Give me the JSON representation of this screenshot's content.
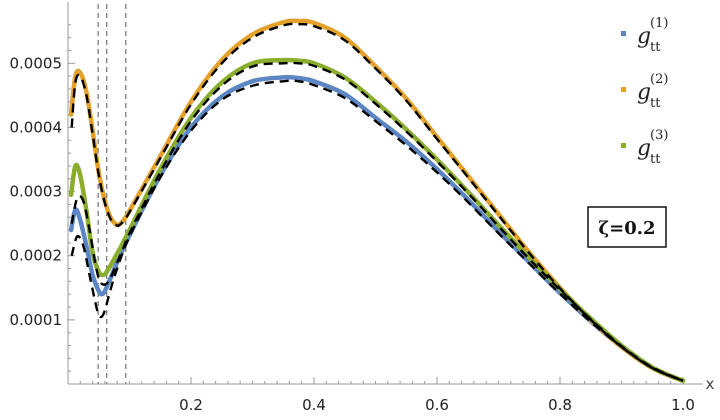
{
  "chart_data": {
    "type": "line",
    "xlabel": "x",
    "ylabel": "",
    "xlim": [
      0.0,
      1.0
    ],
    "ylim": [
      0.0,
      0.00058
    ],
    "x_ticks": [
      0.2,
      0.4,
      0.6,
      0.8,
      1.0
    ],
    "x_tick_labels": [
      "0.2",
      "0.4",
      "0.6",
      "0.8",
      "1.0"
    ],
    "y_ticks": [
      0.0001,
      0.0002,
      0.0003,
      0.0004,
      0.0005
    ],
    "y_tick_labels": [
      "0.0001",
      "0.0002",
      "0.0003",
      "0.0004",
      "0.0005"
    ],
    "vertical_reference_lines": [
      0.049,
      0.063,
      0.094
    ],
    "legend_position": "top-right",
    "annotation": "ζ=0.2",
    "series": [
      {
        "legend_base": "g",
        "legend_sub": "tt",
        "legend_sup": "(1)",
        "color": "#5b86c3",
        "x": [
          0.005,
          0.012,
          0.02,
          0.03,
          0.04,
          0.05,
          0.055,
          0.06,
          0.07,
          0.08,
          0.1,
          0.15,
          0.2,
          0.25,
          0.3,
          0.35,
          0.375,
          0.4,
          0.45,
          0.5,
          0.55,
          0.6,
          0.65,
          0.7,
          0.75,
          0.8,
          0.85,
          0.9,
          0.95,
          1.0
        ],
        "y": [
          0.00024,
          0.000272,
          0.000255,
          0.000215,
          0.00017,
          0.000145,
          0.00014,
          0.000145,
          0.000167,
          0.00019,
          0.000232,
          0.000325,
          0.0004,
          0.000448,
          0.000472,
          0.000478,
          0.000477,
          0.000472,
          0.000452,
          0.000415,
          0.000378,
          0.000335,
          0.000288,
          0.000238,
          0.00019,
          0.000142,
          9.8e-05,
          5.8e-05,
          2.5e-05,
          5e-06
        ]
      },
      {
        "legend_base": "g",
        "legend_sub": "tt",
        "legend_sup": "(2)",
        "color": "#e3a02b",
        "x": [
          0.005,
          0.012,
          0.02,
          0.03,
          0.04,
          0.05,
          0.06,
          0.07,
          0.08,
          0.085,
          0.09,
          0.1,
          0.15,
          0.2,
          0.25,
          0.3,
          0.35,
          0.375,
          0.4,
          0.45,
          0.5,
          0.55,
          0.6,
          0.65,
          0.7,
          0.75,
          0.8,
          0.85,
          0.9,
          0.95,
          1.0
        ],
        "y": [
          0.00042,
          0.00048,
          0.000485,
          0.000455,
          0.000395,
          0.00033,
          0.000285,
          0.000258,
          0.000248,
          0.00025,
          0.000255,
          0.00027,
          0.000355,
          0.00044,
          0.000505,
          0.000545,
          0.000564,
          0.000566,
          0.000563,
          0.00054,
          0.000495,
          0.000445,
          0.000385,
          0.000325,
          0.000265,
          0.000205,
          0.00015,
          0.0001,
          5.8e-05,
          2.5e-05,
          5e-06
        ]
      },
      {
        "legend_base": "g",
        "legend_sub": "tt",
        "legend_sup": "(3)",
        "color": "#8aad2d",
        "x": [
          0.005,
          0.012,
          0.02,
          0.03,
          0.04,
          0.05,
          0.058,
          0.065,
          0.075,
          0.085,
          0.1,
          0.15,
          0.2,
          0.25,
          0.3,
          0.35,
          0.375,
          0.4,
          0.45,
          0.5,
          0.55,
          0.6,
          0.65,
          0.7,
          0.75,
          0.8,
          0.85,
          0.9,
          0.95,
          1.0
        ],
        "y": [
          0.000295,
          0.00034,
          0.000325,
          0.00027,
          0.000205,
          0.000175,
          0.00017,
          0.000178,
          0.000195,
          0.000212,
          0.00024,
          0.000335,
          0.000415,
          0.00047,
          0.0005,
          0.000505,
          0.000504,
          0.0005,
          0.000478,
          0.00044,
          0.000397,
          0.00035,
          0.0003,
          0.000248,
          0.000197,
          0.000148,
          0.000102,
          6e-05,
          2.6e-05,
          5e-06
        ]
      }
    ],
    "reference_curves": [
      {
        "style": "dashed",
        "color": "#000000",
        "x": [
          0.006,
          0.015,
          0.025,
          0.035,
          0.045,
          0.05,
          0.055,
          0.06,
          0.07,
          0.08,
          0.1,
          0.15,
          0.2,
          0.25,
          0.3,
          0.35,
          0.375,
          0.4,
          0.45,
          0.5,
          0.55,
          0.6,
          0.65,
          0.7,
          0.75,
          0.8,
          0.85,
          0.9,
          0.95,
          1.0
        ],
        "y": [
          0.0002,
          0.00023,
          0.000215,
          0.00017,
          0.000125,
          0.000108,
          0.000105,
          0.000115,
          0.00015,
          0.00018,
          0.00023,
          0.000322,
          0.000395,
          0.000443,
          0.000465,
          0.000472,
          0.000472,
          0.000466,
          0.000446,
          0.00041,
          0.000372,
          0.00033,
          0.000284,
          0.000235,
          0.000188,
          0.000141,
          9.7e-05,
          5.8e-05,
          2.5e-05,
          5e-06
        ]
      },
      {
        "style": "dashed",
        "color": "#000000",
        "x": [
          0.006,
          0.012,
          0.02,
          0.03,
          0.04,
          0.05,
          0.06,
          0.07,
          0.08,
          0.085,
          0.09,
          0.1,
          0.15,
          0.2,
          0.25,
          0.3,
          0.35,
          0.375,
          0.4,
          0.45,
          0.5,
          0.55,
          0.6,
          0.65,
          0.7,
          0.75,
          0.8,
          0.85,
          0.9,
          0.95,
          1.0
        ],
        "y": [
          0.0004,
          0.00047,
          0.00048,
          0.00045,
          0.00039,
          0.000326,
          0.000282,
          0.000256,
          0.000247,
          0.000249,
          0.000254,
          0.000268,
          0.000352,
          0.000436,
          0.0005,
          0.00054,
          0.000559,
          0.000561,
          0.000558,
          0.000536,
          0.000492,
          0.000442,
          0.000382,
          0.000323,
          0.000263,
          0.000204,
          0.000149,
          0.0001,
          5.8e-05,
          2.5e-05,
          5e-06
        ]
      },
      {
        "style": "dashed",
        "color": "#000000",
        "x": [
          0.006,
          0.015,
          0.025,
          0.035,
          0.045,
          0.052,
          0.06,
          0.068,
          0.078,
          0.09,
          0.1,
          0.15,
          0.2,
          0.25,
          0.3,
          0.35,
          0.375,
          0.4,
          0.45,
          0.5,
          0.55,
          0.6,
          0.65,
          0.7,
          0.75,
          0.8,
          0.85,
          0.9,
          0.95,
          1.0
        ],
        "y": [
          0.00025,
          0.00029,
          0.000285,
          0.00024,
          0.000185,
          0.00016,
          0.000155,
          0.000163,
          0.000185,
          0.000212,
          0.000235,
          0.00033,
          0.00041,
          0.000465,
          0.000495,
          0.0005,
          0.0005,
          0.000496,
          0.000475,
          0.000437,
          0.000394,
          0.000347,
          0.000298,
          0.000246,
          0.000195,
          0.000147,
          0.000101,
          5.9e-05,
          2.6e-05,
          5e-06
        ]
      }
    ]
  }
}
